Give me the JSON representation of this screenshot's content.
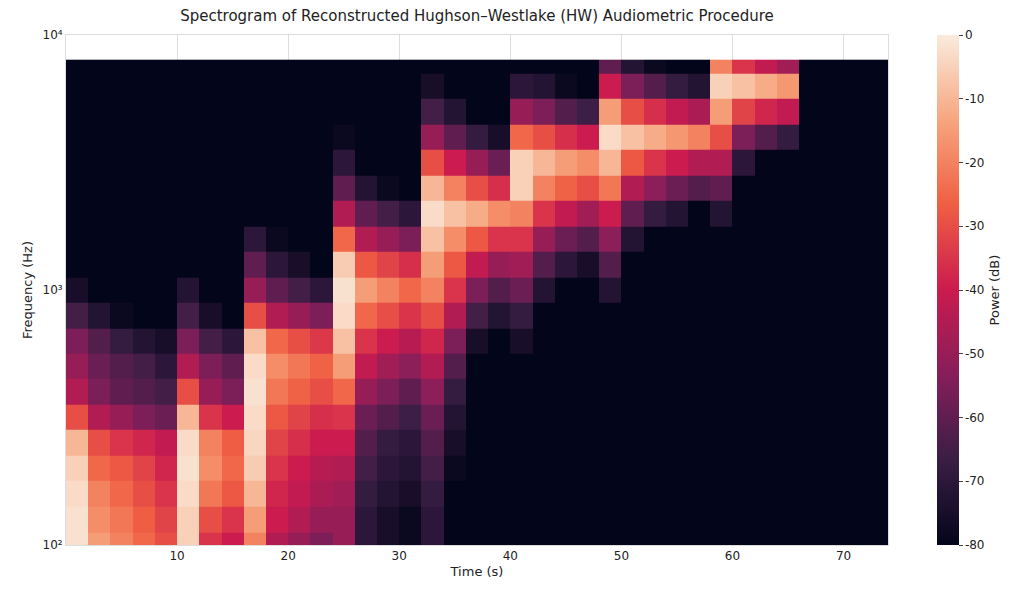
{
  "chart_data": {
    "type": "heatmap",
    "title": "Spectrogram of Reconstructed Hughson–Westlake (HW) Audiometric Procedure",
    "x_label": "Time (s)",
    "y_label": "Frequency (Hz)",
    "time_edges": [
      0,
      2,
      4,
      6,
      8,
      10,
      12,
      14,
      16,
      18,
      20,
      22,
      24,
      26,
      28,
      30,
      32,
      34,
      36,
      38,
      40,
      42,
      44,
      46,
      48,
      50,
      52,
      54,
      56,
      58,
      60,
      62,
      64,
      66,
      68,
      70,
      72,
      74
    ],
    "frequency_edges": [
      89,
      112,
      141,
      178,
      224,
      282,
      355,
      447,
      562,
      708,
      891,
      1122,
      1413,
      1778,
      2239,
      2818,
      3548,
      4467,
      5623,
      7079,
      8000
    ],
    "z": [
      [
        -2,
        -15,
        -20,
        -25,
        -30,
        -5,
        -35,
        -40,
        -20,
        -45,
        -50,
        -55,
        -50,
        -70,
        -75,
        -78,
        -70,
        -80,
        -80,
        -80,
        -80,
        -80,
        -80,
        -80,
        -80,
        -80,
        -80,
        -80,
        -80,
        -80,
        -80,
        -80,
        -80,
        -80,
        -80,
        -80,
        -80
      ],
      [
        -2,
        -18,
        -22,
        -27,
        -32,
        -5,
        -30,
        -35,
        -15,
        -40,
        -45,
        -50,
        -50,
        -70,
        -75,
        -78,
        -70,
        -80,
        -80,
        -80,
        -80,
        -80,
        -80,
        -80,
        -80,
        -80,
        -80,
        -80,
        -80,
        -80,
        -80,
        -80,
        -80,
        -80,
        -80,
        -80,
        -80
      ],
      [
        -3,
        -20,
        -25,
        -30,
        -35,
        -3,
        -22,
        -28,
        -10,
        -38,
        -42,
        -46,
        -48,
        -68,
        -72,
        -75,
        -68,
        -80,
        -80,
        -80,
        -80,
        -80,
        -80,
        -80,
        -80,
        -80,
        -80,
        -80,
        -80,
        -80,
        -80,
        -80,
        -80,
        -80,
        -80,
        -80,
        -80
      ],
      [
        -5,
        -25,
        -28,
        -32,
        -38,
        -2,
        -18,
        -25,
        -6,
        -35,
        -40,
        -44,
        -45,
        -65,
        -70,
        -72,
        -65,
        -78,
        -80,
        -80,
        -80,
        -80,
        -80,
        -80,
        -80,
        -80,
        -80,
        -80,
        -80,
        -80,
        -80,
        -80,
        -80,
        -80,
        -80,
        -80,
        -80
      ],
      [
        -10,
        -30,
        -35,
        -38,
        -42,
        -3,
        -20,
        -27,
        -4,
        -32,
        -36,
        -40,
        -40,
        -62,
        -68,
        -70,
        -62,
        -75,
        -80,
        -80,
        -80,
        -80,
        -80,
        -80,
        -80,
        -80,
        -80,
        -80,
        -80,
        -80,
        -80,
        -80,
        -80,
        -80,
        -80,
        -80,
        -80
      ],
      [
        -30,
        -45,
        -50,
        -55,
        -58,
        -10,
        -35,
        -40,
        -3,
        -28,
        -32,
        -36,
        -35,
        -58,
        -62,
        -66,
        -58,
        -72,
        -80,
        -80,
        -80,
        -80,
        -80,
        -80,
        -80,
        -80,
        -80,
        -80,
        -80,
        -80,
        -80,
        -80,
        -80,
        -80,
        -80,
        -80,
        -80
      ],
      [
        -45,
        -55,
        -60,
        -62,
        -65,
        -30,
        -50,
        -55,
        -2,
        -22,
        -26,
        -30,
        -25,
        -50,
        -55,
        -60,
        -52,
        -68,
        -80,
        -80,
        -80,
        -80,
        -80,
        -80,
        -80,
        -80,
        -80,
        -80,
        -80,
        -80,
        -80,
        -80,
        -80,
        -80,
        -80,
        -80,
        -80
      ],
      [
        -50,
        -58,
        -62,
        -65,
        -70,
        -45,
        -55,
        -60,
        -3,
        -18,
        -22,
        -26,
        -15,
        -42,
        -48,
        -52,
        -45,
        -62,
        -80,
        -80,
        -80,
        -80,
        -80,
        -80,
        -80,
        -80,
        -80,
        -80,
        -80,
        -80,
        -80,
        -80,
        -80,
        -80,
        -80,
        -80,
        -80
      ],
      [
        -55,
        -62,
        -68,
        -72,
        -75,
        -55,
        -65,
        -70,
        -8,
        -25,
        -30,
        -34,
        -8,
        -35,
        -40,
        -44,
        -38,
        -55,
        -75,
        -80,
        -75,
        -80,
        -80,
        -80,
        -80,
        -80,
        -80,
        -80,
        -80,
        -80,
        -80,
        -80,
        -80,
        -80,
        -80,
        -80,
        -80
      ],
      [
        -65,
        -72,
        -78,
        -80,
        -80,
        -65,
        -75,
        -80,
        -30,
        -45,
        -50,
        -55,
        -3,
        -25,
        -30,
        -35,
        -30,
        -45,
        -65,
        -72,
        -68,
        -80,
        -80,
        -80,
        -80,
        -80,
        -80,
        -80,
        -80,
        -80,
        -80,
        -80,
        -80,
        -80,
        -80,
        -80,
        -80
      ],
      [
        -75,
        -80,
        -80,
        -80,
        -80,
        -72,
        -80,
        -80,
        -50,
        -60,
        -65,
        -70,
        -2,
        -15,
        -20,
        -25,
        -20,
        -35,
        -55,
        -62,
        -58,
        -72,
        -80,
        -80,
        -72,
        -80,
        -80,
        -80,
        -80,
        -80,
        -80,
        -80,
        -80,
        -80,
        -80,
        -80,
        -80
      ],
      [
        -80,
        -80,
        -80,
        -80,
        -80,
        -80,
        -80,
        -80,
        -60,
        -70,
        -75,
        -80,
        -6,
        -28,
        -32,
        -36,
        -15,
        -28,
        -42,
        -50,
        -48,
        -62,
        -70,
        -75,
        -62,
        -80,
        -80,
        -80,
        -80,
        -80,
        -80,
        -80,
        -80,
        -80,
        -80,
        -80,
        -80
      ],
      [
        -80,
        -80,
        -80,
        -80,
        -80,
        -80,
        -80,
        -80,
        -70,
        -78,
        -80,
        -80,
        -25,
        -45,
        -50,
        -55,
        -8,
        -18,
        -28,
        -35,
        -35,
        -50,
        -58,
        -62,
        -52,
        -72,
        -80,
        -80,
        -80,
        -80,
        -80,
        -80,
        -80,
        -80,
        -80,
        -80,
        -80
      ],
      [
        -80,
        -80,
        -80,
        -80,
        -80,
        -80,
        -80,
        -80,
        -80,
        -80,
        -80,
        -80,
        -45,
        -60,
        -65,
        -70,
        -3,
        -8,
        -12,
        -18,
        -20,
        -35,
        -42,
        -48,
        -40,
        -60,
        -68,
        -72,
        -80,
        -72,
        -80,
        -80,
        -80,
        -80,
        -80,
        -80,
        -80
      ],
      [
        -80,
        -80,
        -80,
        -80,
        -80,
        -80,
        -80,
        -80,
        -80,
        -80,
        -80,
        -80,
        -60,
        -72,
        -78,
        -80,
        -10,
        -20,
        -30,
        -36,
        -5,
        -20,
        -26,
        -30,
        -22,
        -45,
        -52,
        -58,
        -62,
        -60,
        -80,
        -80,
        -80,
        -80,
        -80,
        -80,
        -80
      ],
      [
        -80,
        -80,
        -80,
        -80,
        -80,
        -80,
        -80,
        -80,
        -80,
        -80,
        -80,
        -80,
        -70,
        -80,
        -80,
        -80,
        -30,
        -40,
        -50,
        -58,
        -5,
        -10,
        -15,
        -18,
        -10,
        -28,
        -35,
        -40,
        -45,
        -45,
        -70,
        -80,
        -80,
        -80,
        -80,
        -80,
        -80
      ],
      [
        -80,
        -80,
        -80,
        -80,
        -80,
        -80,
        -80,
        -80,
        -80,
        -80,
        -80,
        -80,
        -78,
        -80,
        -80,
        -80,
        -50,
        -60,
        -68,
        -75,
        -25,
        -30,
        -36,
        -40,
        -3,
        -8,
        -12,
        -16,
        -20,
        -30,
        -55,
        -62,
        -68,
        -80,
        -80,
        -80,
        -80
      ],
      [
        -80,
        -80,
        -80,
        -80,
        -80,
        -80,
        -80,
        -80,
        -80,
        -80,
        -80,
        -80,
        -80,
        -80,
        -80,
        -80,
        -65,
        -72,
        -80,
        -80,
        -50,
        -55,
        -62,
        -66,
        -15,
        -30,
        -36,
        -42,
        -46,
        -15,
        -32,
        -38,
        -42,
        -80,
        -80,
        -80,
        -80
      ],
      [
        -80,
        -80,
        -80,
        -80,
        -80,
        -80,
        -80,
        -80,
        -80,
        -80,
        -80,
        -80,
        -80,
        -80,
        -80,
        -80,
        -75,
        -80,
        -80,
        -80,
        -70,
        -72,
        -78,
        -80,
        -40,
        -55,
        -62,
        -68,
        -72,
        -5,
        -8,
        -12,
        -16,
        -80,
        -80,
        -80,
        -80
      ],
      [
        -80,
        -80,
        -80,
        -80,
        -80,
        -80,
        -80,
        -80,
        -80,
        -80,
        -80,
        -80,
        -80,
        -80,
        -80,
        -80,
        -80,
        -80,
        -80,
        -80,
        -80,
        -80,
        -80,
        -80,
        -60,
        -72,
        -78,
        -80,
        -80,
        -20,
        -35,
        -42,
        -48,
        -80,
        -80,
        -80,
        -80
      ]
    ],
    "xlim": [
      0,
      74
    ],
    "xticks": [
      10,
      20,
      30,
      40,
      50,
      60,
      70
    ],
    "ylim": [
      100,
      10000
    ],
    "yticks": [
      {
        "value": 100,
        "label": "10²"
      },
      {
        "value": 1000,
        "label": "10³"
      },
      {
        "value": 10000,
        "label": "10⁴"
      }
    ],
    "log": "y",
    "grid": true,
    "colorbar": {
      "title": "Power (dB)",
      "range": [
        -80,
        0
      ],
      "ticks": [
        0,
        -10,
        -20,
        -30,
        -40,
        -50,
        -60,
        -70,
        -80
      ]
    }
  }
}
